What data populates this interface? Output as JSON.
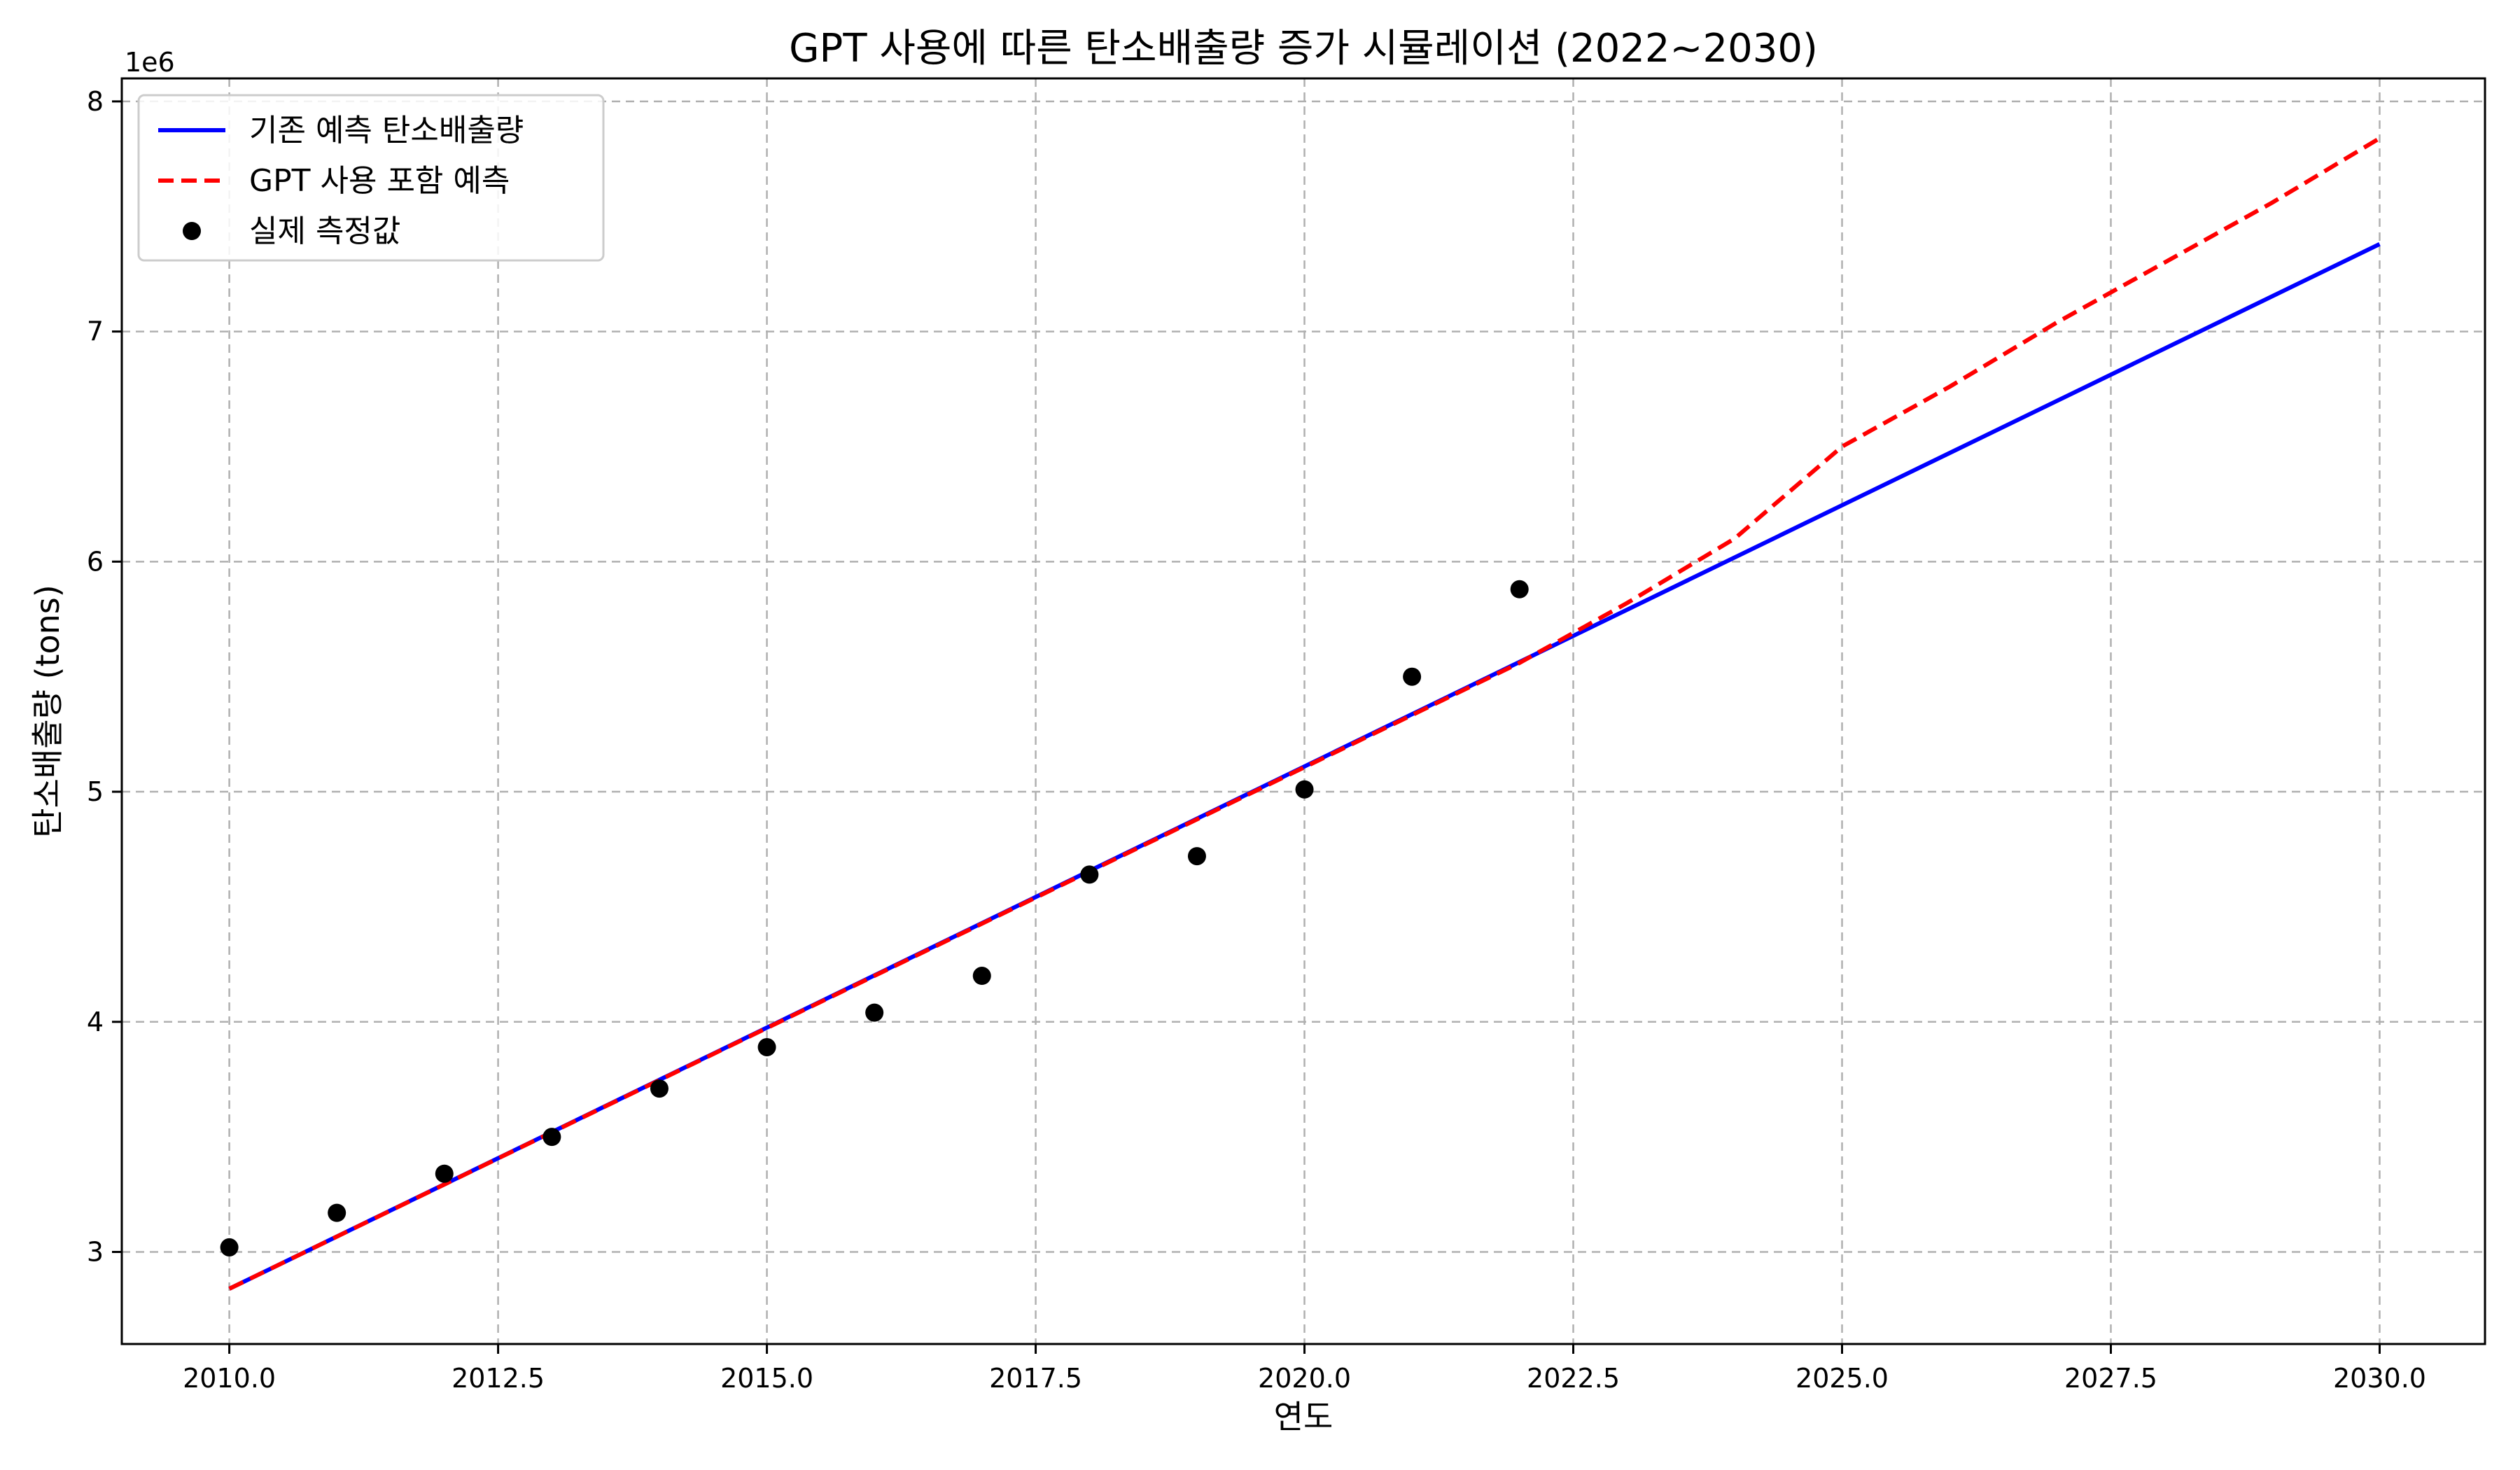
{
  "chart_data": {
    "type": "line",
    "title": "GPT 사용에 따른 탄소배출량 증가 시뮬레이션 (2022~2030)",
    "xlabel": "연도",
    "ylabel": "탄소배출량 (tons)",
    "y_offset_label": "1e6",
    "xlim": [
      2009,
      2030.98
    ],
    "ylim": [
      2.6,
      8.1
    ],
    "x_ticks": [
      2010.0,
      2012.5,
      2015.0,
      2017.5,
      2020.0,
      2022.5,
      2025.0,
      2027.5,
      2030.0
    ],
    "x_tick_labels": [
      "2010.0",
      "2012.5",
      "2015.0",
      "2017.5",
      "2020.0",
      "2022.5",
      "2025.0",
      "2027.5",
      "2030.0"
    ],
    "y_ticks": [
      3,
      4,
      5,
      6,
      7,
      8
    ],
    "y_tick_labels": [
      "3",
      "4",
      "5",
      "6",
      "7",
      "8"
    ],
    "grid": true,
    "legend_position": "top-left",
    "series": [
      {
        "name": "기존 예측 탄소배출량",
        "style": "solid",
        "color": "#0000ff",
        "x": [
          2010,
          2030
        ],
        "y": [
          2.84,
          7.38
        ]
      },
      {
        "name": "GPT 사용 포함 예측",
        "style": "dashed",
        "color": "#ff0000",
        "x": [
          2010,
          2022,
          2023,
          2024,
          2025,
          2026,
          2027,
          2028,
          2029,
          2030
        ],
        "y": [
          2.84,
          5.56,
          5.82,
          6.1,
          6.5,
          6.76,
          7.04,
          7.3,
          7.56,
          7.84
        ]
      },
      {
        "name": "실제 측정값",
        "style": "markers",
        "color": "#000000",
        "x": [
          2010,
          2011,
          2012,
          2013,
          2014,
          2015,
          2016,
          2017,
          2018,
          2019,
          2020,
          2021,
          2022
        ],
        "y": [
          3.02,
          3.17,
          3.34,
          3.5,
          3.71,
          3.89,
          4.04,
          4.2,
          4.64,
          4.72,
          5.01,
          5.5,
          5.88
        ]
      }
    ]
  }
}
